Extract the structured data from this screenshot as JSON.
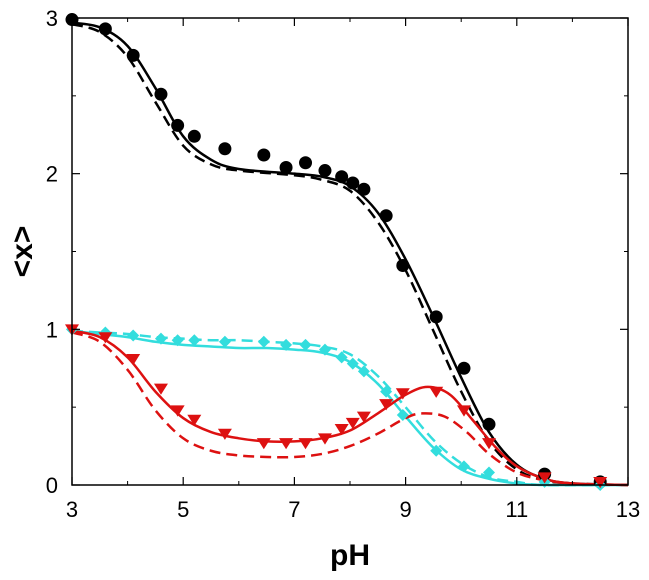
{
  "chart_data": {
    "type": "scatter",
    "title": "",
    "xlabel": "pH",
    "ylabel": "<x>",
    "xlim": [
      3,
      13
    ],
    "ylim": [
      0,
      3
    ],
    "xticks": [
      3,
      5,
      7,
      9,
      11,
      13
    ],
    "yticks": [
      0,
      1,
      2,
      3
    ],
    "x_tick_labels": [
      "3",
      "5",
      "7",
      "9",
      "11",
      "13"
    ],
    "y_tick_labels": [
      "0",
      "1",
      "2",
      "3"
    ],
    "grid": false,
    "legend": "none",
    "series": [
      {
        "color": "#000000",
        "marker": "circle",
        "points": [
          [
            3.0,
            2.99
          ],
          [
            3.6,
            2.93
          ],
          [
            4.1,
            2.76
          ],
          [
            4.6,
            2.51
          ],
          [
            4.9,
            2.31
          ],
          [
            5.2,
            2.24
          ],
          [
            5.75,
            2.16
          ],
          [
            6.45,
            2.12
          ],
          [
            6.85,
            2.04
          ],
          [
            7.2,
            2.07
          ],
          [
            7.55,
            2.02
          ],
          [
            7.85,
            1.98
          ],
          [
            8.05,
            1.94
          ],
          [
            8.25,
            1.9
          ],
          [
            8.65,
            1.73
          ],
          [
            8.95,
            1.41
          ],
          [
            9.55,
            1.08
          ],
          [
            10.05,
            0.75
          ],
          [
            10.5,
            0.39
          ],
          [
            11.5,
            0.07
          ],
          [
            12.5,
            0.02
          ]
        ],
        "solid_fit": [
          [
            3.0,
            2.97
          ],
          [
            3.5,
            2.94
          ],
          [
            4.0,
            2.82
          ],
          [
            4.5,
            2.55
          ],
          [
            5.0,
            2.24
          ],
          [
            5.5,
            2.09
          ],
          [
            6.0,
            2.03
          ],
          [
            7.0,
            2.0
          ],
          [
            7.5,
            1.98
          ],
          [
            8.0,
            1.92
          ],
          [
            8.5,
            1.75
          ],
          [
            9.0,
            1.45
          ],
          [
            9.5,
            1.08
          ],
          [
            10.0,
            0.69
          ],
          [
            10.5,
            0.34
          ],
          [
            11.0,
            0.13
          ],
          [
            11.5,
            0.04
          ],
          [
            12.0,
            0.01
          ],
          [
            13.0,
            0.0
          ]
        ],
        "dashed_fit": [
          [
            3.0,
            2.96
          ],
          [
            3.5,
            2.91
          ],
          [
            4.0,
            2.75
          ],
          [
            4.5,
            2.46
          ],
          [
            5.0,
            2.18
          ],
          [
            5.5,
            2.06
          ],
          [
            6.0,
            2.02
          ],
          [
            7.0,
            1.99
          ],
          [
            7.5,
            1.96
          ],
          [
            8.0,
            1.89
          ],
          [
            8.5,
            1.69
          ],
          [
            9.0,
            1.38
          ],
          [
            9.5,
            0.99
          ],
          [
            10.0,
            0.6
          ],
          [
            10.5,
            0.28
          ],
          [
            11.0,
            0.1
          ],
          [
            11.5,
            0.03
          ],
          [
            12.0,
            0.01
          ],
          [
            13.0,
            0.0
          ]
        ]
      },
      {
        "color": "#33dddd",
        "marker": "diamond",
        "points": [
          [
            3.0,
            1.0
          ],
          [
            3.6,
            0.98
          ],
          [
            4.1,
            0.96
          ],
          [
            4.6,
            0.94
          ],
          [
            4.9,
            0.93
          ],
          [
            5.2,
            0.93
          ],
          [
            5.75,
            0.92
          ],
          [
            6.45,
            0.92
          ],
          [
            6.85,
            0.9
          ],
          [
            7.2,
            0.9
          ],
          [
            7.55,
            0.87
          ],
          [
            7.85,
            0.82
          ],
          [
            8.05,
            0.78
          ],
          [
            8.25,
            0.73
          ],
          [
            8.65,
            0.6
          ],
          [
            8.95,
            0.45
          ],
          [
            9.55,
            0.22
          ],
          [
            10.05,
            0.12
          ],
          [
            10.5,
            0.08
          ],
          [
            11.5,
            0.02
          ],
          [
            12.5,
            0.0
          ]
        ],
        "solid_fit": [
          [
            3.0,
            0.99
          ],
          [
            3.5,
            0.97
          ],
          [
            4.0,
            0.95
          ],
          [
            4.5,
            0.92
          ],
          [
            5.0,
            0.9
          ],
          [
            5.5,
            0.89
          ],
          [
            6.0,
            0.88
          ],
          [
            6.5,
            0.88
          ],
          [
            7.0,
            0.87
          ],
          [
            7.5,
            0.85
          ],
          [
            8.0,
            0.79
          ],
          [
            8.5,
            0.65
          ],
          [
            9.0,
            0.44
          ],
          [
            9.5,
            0.24
          ],
          [
            10.0,
            0.1
          ],
          [
            10.5,
            0.04
          ],
          [
            11.0,
            0.01
          ],
          [
            11.5,
            0.0
          ],
          [
            13.0,
            0.0
          ]
        ],
        "dashed_fit": [
          [
            3.0,
            0.99
          ],
          [
            3.5,
            0.98
          ],
          [
            4.0,
            0.97
          ],
          [
            4.5,
            0.95
          ],
          [
            5.0,
            0.94
          ],
          [
            5.5,
            0.93
          ],
          [
            6.0,
            0.93
          ],
          [
            6.5,
            0.92
          ],
          [
            7.0,
            0.91
          ],
          [
            7.5,
            0.89
          ],
          [
            8.0,
            0.84
          ],
          [
            8.5,
            0.7
          ],
          [
            9.0,
            0.5
          ],
          [
            9.5,
            0.29
          ],
          [
            10.0,
            0.14
          ],
          [
            10.5,
            0.05
          ],
          [
            11.0,
            0.02
          ],
          [
            11.5,
            0.0
          ],
          [
            13.0,
            0.0
          ]
        ]
      },
      {
        "color": "#dd1111",
        "marker": "triangle-down",
        "points": [
          [
            3.0,
            1.0
          ],
          [
            3.6,
            0.95
          ],
          [
            4.1,
            0.81
          ],
          [
            4.6,
            0.62
          ],
          [
            4.9,
            0.48
          ],
          [
            5.2,
            0.42
          ],
          [
            5.75,
            0.33
          ],
          [
            6.45,
            0.27
          ],
          [
            6.85,
            0.27
          ],
          [
            7.2,
            0.27
          ],
          [
            7.55,
            0.3
          ],
          [
            7.85,
            0.36
          ],
          [
            8.05,
            0.4
          ],
          [
            8.25,
            0.44
          ],
          [
            8.65,
            0.52
          ],
          [
            8.95,
            0.59
          ],
          [
            9.55,
            0.6
          ],
          [
            10.05,
            0.48
          ],
          [
            10.5,
            0.27
          ],
          [
            11.5,
            0.05
          ],
          [
            12.5,
            0.02
          ]
        ],
        "solid_fit": [
          [
            3.0,
            0.99
          ],
          [
            3.5,
            0.95
          ],
          [
            4.0,
            0.82
          ],
          [
            4.5,
            0.6
          ],
          [
            5.0,
            0.43
          ],
          [
            5.5,
            0.34
          ],
          [
            6.0,
            0.3
          ],
          [
            6.5,
            0.28
          ],
          [
            7.0,
            0.28
          ],
          [
            7.5,
            0.3
          ],
          [
            8.0,
            0.35
          ],
          [
            8.5,
            0.46
          ],
          [
            9.0,
            0.58
          ],
          [
            9.4,
            0.63
          ],
          [
            9.8,
            0.58
          ],
          [
            10.2,
            0.42
          ],
          [
            10.6,
            0.25
          ],
          [
            11.0,
            0.12
          ],
          [
            11.5,
            0.04
          ],
          [
            12.0,
            0.01
          ],
          [
            13.0,
            0.0
          ]
        ],
        "dashed_fit": [
          [
            3.0,
            0.98
          ],
          [
            3.5,
            0.92
          ],
          [
            4.0,
            0.74
          ],
          [
            4.5,
            0.48
          ],
          [
            5.0,
            0.3
          ],
          [
            5.5,
            0.22
          ],
          [
            6.0,
            0.19
          ],
          [
            6.5,
            0.18
          ],
          [
            7.0,
            0.18
          ],
          [
            7.5,
            0.2
          ],
          [
            8.0,
            0.25
          ],
          [
            8.5,
            0.33
          ],
          [
            9.0,
            0.43
          ],
          [
            9.3,
            0.46
          ],
          [
            9.7,
            0.44
          ],
          [
            10.1,
            0.34
          ],
          [
            10.5,
            0.2
          ],
          [
            11.0,
            0.08
          ],
          [
            11.5,
            0.03
          ],
          [
            12.0,
            0.01
          ],
          [
            13.0,
            0.0
          ]
        ]
      }
    ]
  }
}
